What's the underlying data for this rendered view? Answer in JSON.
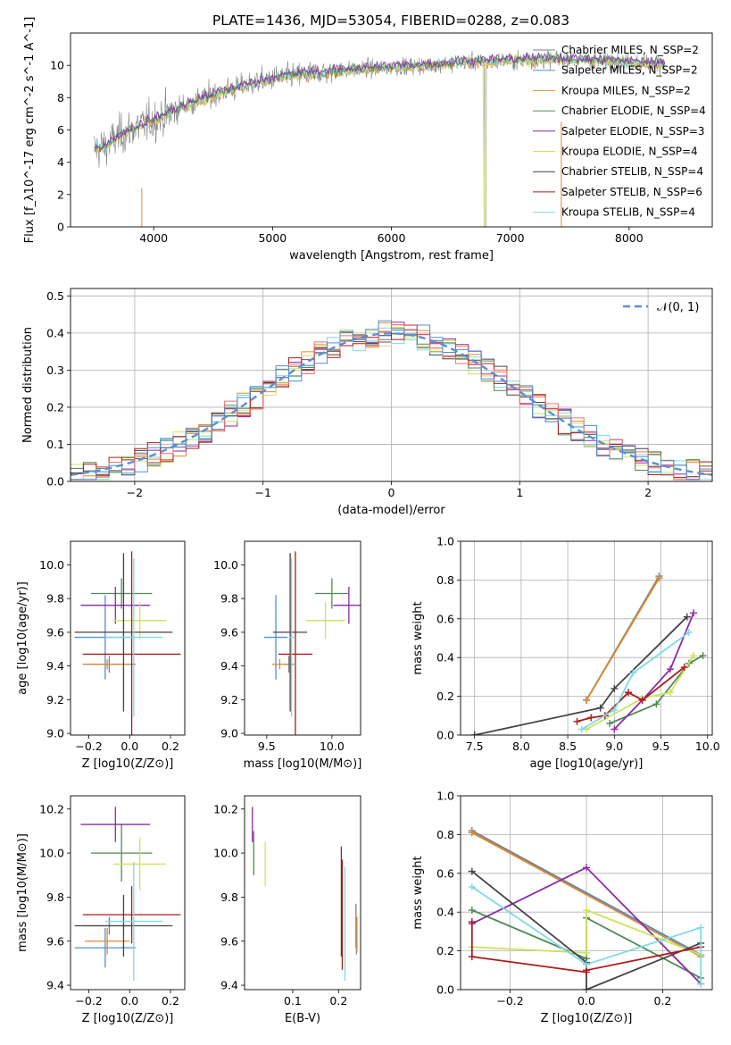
{
  "figure_title": "PLATE=1436, MJD=53054, FIBERID=0288, z=0.083",
  "colors": {
    "Chabrier MILES": "#7f7f7f",
    "Salpeter MILES": "#4e8fd6",
    "Kroupa MILES": "#e08a2e",
    "Chabrier ELODIE": "#4f8a55",
    "Salpeter ELODIE": "#8e2aa7",
    "Kroupa ELODIE": "#cde35c",
    "Chabrier STELIB": "#444444",
    "Salpeter STELIB": "#ad1a1a",
    "Kroupa STELIB": "#7fd9e6",
    "normal": "#5b8fd6"
  },
  "chart_data": [
    {
      "id": "spectrum",
      "type": "line",
      "xlabel": "wavelength [Angstrom, rest frame]",
      "ylabel": "Flux [f_λ10^-17 erg cm^-2 s^-1 A^-1]",
      "xlim": [
        3300,
        8700
      ],
      "ylim": [
        0,
        12
      ],
      "xticks": [
        4000,
        5000,
        6000,
        7000,
        8000
      ],
      "yticks": [
        0,
        2,
        4,
        6,
        8,
        10
      ],
      "grid": false,
      "legend_position": "right",
      "series": [
        {
          "name": "Chabrier MILES, N_SSP=2"
        },
        {
          "name": "Salpeter MILES, N_SSP=2"
        },
        {
          "name": "Kroupa MILES, N_SSP=2"
        },
        {
          "name": "Chabrier ELODIE, N_SSP=4"
        },
        {
          "name": "Salpeter ELODIE, N_SSP=3"
        },
        {
          "name": "Kroupa ELODIE, N_SSP=4"
        },
        {
          "name": "Chabrier STELIB, N_SSP=4"
        },
        {
          "name": "Salpeter STELIB, N_SSP=6"
        },
        {
          "name": "Kroupa STELIB, N_SSP=4"
        }
      ],
      "continuum": {
        "x": [
          3500,
          3600,
          3700,
          3800,
          3900,
          4000,
          4200,
          4500,
          4800,
          5000,
          5300,
          5600,
          6000,
          6300,
          6600,
          7000,
          7400,
          7700,
          8000,
          8300
        ],
        "y": [
          4.8,
          5.0,
          5.6,
          6.0,
          6.3,
          6.6,
          7.3,
          8.2,
          8.8,
          9.2,
          9.5,
          9.7,
          9.9,
          10.0,
          10.2,
          10.3,
          10.4,
          10.3,
          10.2,
          10.1
        ]
      }
    },
    {
      "id": "residuals",
      "type": "area",
      "xlabel": "(data-model)/error",
      "ylabel": "Normed distribution",
      "xlim": [
        -2.5,
        2.5
      ],
      "ylim": [
        0,
        0.52
      ],
      "xticks": [
        -2,
        -1,
        0,
        1,
        2
      ],
      "yticks": [
        0.0,
        0.1,
        0.2,
        0.3,
        0.4,
        0.5
      ],
      "grid": true,
      "legend": "𝒩(0, 1)",
      "normal_sigma": 1
    },
    {
      "id": "age_vs_Z",
      "type": "scatter",
      "xlabel": "Z [log10(Z/Z⊙)]",
      "ylabel": "age  [log10(age/yr)]",
      "xlim": [
        -0.29,
        0.27
      ],
      "ylim": [
        8.99,
        10.14
      ],
      "xticks": [
        -0.2,
        0.0,
        0.2
      ],
      "yticks": [
        9.0,
        9.2,
        9.4,
        9.6,
        9.8,
        10.0
      ],
      "points": [
        {
          "model": "Chabrier MILES",
          "x": -0.1,
          "y": 9.41,
          "xerr": 0.13,
          "yerr": 0.05
        },
        {
          "model": "Salpeter MILES",
          "x": -0.12,
          "y": 9.57,
          "xerr": 0.15,
          "yerr": 0.25
        },
        {
          "model": "Kroupa MILES",
          "x": -0.11,
          "y": 9.41,
          "xerr": 0.11,
          "yerr": 0.03
        },
        {
          "model": "Chabrier ELODIE",
          "x": -0.04,
          "y": 9.83,
          "xerr": 0.15,
          "yerr": 0.09
        },
        {
          "model": "Salpeter ELODIE",
          "x": -0.07,
          "y": 9.76,
          "xerr": 0.17,
          "yerr": 0.11
        },
        {
          "model": "Kroupa ELODIE",
          "x": 0.05,
          "y": 9.67,
          "xerr": 0.13,
          "yerr": 0.11
        },
        {
          "model": "Chabrier STELIB",
          "x": -0.03,
          "y": 9.6,
          "xerr": 0.24,
          "yerr": 0.47
        },
        {
          "model": "Salpeter STELIB",
          "x": 0.01,
          "y": 9.47,
          "xerr": 0.24,
          "yerr": 0.61
        },
        {
          "model": "Kroupa STELIB",
          "x": 0.02,
          "y": 9.57,
          "xerr": 0.14,
          "yerr": 0.47
        }
      ]
    },
    {
      "id": "age_vs_mass",
      "type": "scatter",
      "xlabel": "mass [log10(M/M⊙)]",
      "ylabel": "",
      "xlim": [
        9.33,
        10.22
      ],
      "ylim": [
        8.99,
        10.14
      ],
      "xticks": [
        9.5,
        10.0
      ],
      "yticks": [
        9.0,
        9.2,
        9.4,
        9.6,
        9.8,
        10.0
      ],
      "points": [
        {
          "model": "Chabrier MILES",
          "x": 9.67,
          "y": 9.41,
          "xerr": 0.04,
          "yerr": 0.05
        },
        {
          "model": "Salpeter MILES",
          "x": 9.57,
          "y": 9.57,
          "xerr": 0.09,
          "yerr": 0.25
        },
        {
          "model": "Kroupa MILES",
          "x": 9.6,
          "y": 9.41,
          "xerr": 0.06,
          "yerr": 0.03
        },
        {
          "model": "Chabrier ELODIE",
          "x": 10.0,
          "y": 9.83,
          "xerr": 0.13,
          "yerr": 0.09
        },
        {
          "model": "Salpeter ELODIE",
          "x": 10.13,
          "y": 9.76,
          "xerr": 0.12,
          "yerr": 0.11
        },
        {
          "model": "Kroupa ELODIE",
          "x": 9.95,
          "y": 9.67,
          "xerr": 0.15,
          "yerr": 0.11
        },
        {
          "model": "Chabrier STELIB",
          "x": 9.68,
          "y": 9.6,
          "xerr": 0.13,
          "yerr": 0.47
        },
        {
          "model": "Salpeter STELIB",
          "x": 9.72,
          "y": 9.47,
          "xerr": 0.13,
          "yerr": 0.61
        },
        {
          "model": "Kroupa STELIB",
          "x": 9.69,
          "y": 9.57,
          "xerr": 0.02,
          "yerr": 0.47
        }
      ]
    },
    {
      "id": "mass_weight_vs_age",
      "type": "line",
      "xlabel": "age  [log10(age/yr)]",
      "ylabel": "mass weight",
      "xlim": [
        7.35,
        10.05
      ],
      "ylim": [
        0,
        1
      ],
      "xticks": [
        7.5,
        8.0,
        8.5,
        9.0,
        9.5,
        10.0
      ],
      "yticks": [
        0.0,
        0.2,
        0.4,
        0.6,
        0.8,
        1.0
      ],
      "grid": true,
      "series": [
        {
          "model": "Chabrier MILES",
          "x": [
            8.7,
            9.48
          ],
          "y": [
            0.18,
            0.82
          ]
        },
        {
          "model": "Salpeter MILES",
          "x": [
            8.7,
            9.48
          ],
          "y": [
            0.18,
            0.81
          ]
        },
        {
          "model": "Kroupa MILES",
          "x": [
            8.7,
            9.48
          ],
          "y": [
            0.18,
            0.81
          ]
        },
        {
          "model": "Chabrier ELODIE",
          "x": [
            8.95,
            9.45,
            9.8,
            9.95
          ],
          "y": [
            0.06,
            0.16,
            0.37,
            0.41
          ]
        },
        {
          "model": "Salpeter ELODIE",
          "x": [
            9.0,
            9.3,
            9.6,
            9.85
          ],
          "y": [
            0.03,
            0.18,
            0.34,
            0.63
          ]
        },
        {
          "model": "Kroupa ELODIE",
          "x": [
            8.7,
            9.3,
            9.6,
            9.85
          ],
          "y": [
            0.03,
            0.19,
            0.22,
            0.41
          ]
        },
        {
          "model": "Chabrier STELIB",
          "x": [
            7.5,
            8.85,
            9.0,
            9.78
          ],
          "y": [
            0.0,
            0.14,
            0.24,
            0.61
          ]
        },
        {
          "model": "Salpeter STELIB",
          "x": [
            8.6,
            8.75,
            8.9,
            9.15,
            9.3,
            9.75
          ],
          "y": [
            0.07,
            0.09,
            0.1,
            0.22,
            0.18,
            0.35
          ]
        },
        {
          "model": "Kroupa STELIB",
          "x": [
            8.65,
            9.0,
            9.2,
            9.8
          ],
          "y": [
            0.03,
            0.13,
            0.32,
            0.53
          ]
        }
      ]
    },
    {
      "id": "mass_vs_Z",
      "type": "scatter",
      "xlabel": "Z [log10(Z/Z⊙)]",
      "ylabel": "mass [log10(M/M⊙)]",
      "xlim": [
        -0.29,
        0.27
      ],
      "ylim": [
        9.38,
        10.26
      ],
      "xticks": [
        -0.2,
        0.0,
        0.2
      ],
      "yticks": [
        9.4,
        9.6,
        9.8,
        10.0,
        10.2
      ],
      "points": [
        {
          "model": "Chabrier MILES",
          "x": -0.1,
          "y": 9.67,
          "xerr": 0.13,
          "yerr": 0.04
        },
        {
          "model": "Salpeter MILES",
          "x": -0.12,
          "y": 9.57,
          "xerr": 0.15,
          "yerr": 0.09
        },
        {
          "model": "Kroupa MILES",
          "x": -0.11,
          "y": 9.6,
          "xerr": 0.11,
          "yerr": 0.06
        },
        {
          "model": "Chabrier ELODIE",
          "x": -0.04,
          "y": 10.0,
          "xerr": 0.15,
          "yerr": 0.13
        },
        {
          "model": "Salpeter ELODIE",
          "x": -0.07,
          "y": 10.13,
          "xerr": 0.17,
          "yerr": 0.08
        },
        {
          "model": "Kroupa ELODIE",
          "x": 0.05,
          "y": 9.95,
          "xerr": 0.13,
          "yerr": 0.12
        },
        {
          "model": "Chabrier STELIB",
          "x": -0.03,
          "y": 9.67,
          "xerr": 0.24,
          "yerr": 0.14
        },
        {
          "model": "Salpeter STELIB",
          "x": 0.01,
          "y": 9.72,
          "xerr": 0.24,
          "yerr": 0.13
        },
        {
          "model": "Kroupa STELIB",
          "x": 0.02,
          "y": 9.69,
          "xerr": 0.14,
          "yerr": 0.27
        }
      ]
    },
    {
      "id": "mass_vs_ebv",
      "type": "scatter",
      "xlabel": "E(B-V)",
      "ylabel": "",
      "xlim": [
        -0.005,
        0.248
      ],
      "ylim": [
        9.38,
        10.26
      ],
      "xticks": [
        0.1,
        0.2
      ],
      "yticks": [
        9.4,
        9.6,
        9.8,
        10.0,
        10.2
      ],
      "points": [
        {
          "model": "Salpeter ELODIE",
          "x": 0.012,
          "y": 10.13,
          "yerr": 0.08
        },
        {
          "model": "Chabrier ELODIE",
          "x": 0.015,
          "y": 10.0,
          "yerr": 0.1
        },
        {
          "model": "Kroupa ELODIE",
          "x": 0.04,
          "y": 9.95,
          "yerr": 0.1
        },
        {
          "model": "Chabrier STELIB",
          "x": 0.206,
          "y": 9.78,
          "yerr": 0.25
        },
        {
          "model": "Salpeter STELIB",
          "x": 0.208,
          "y": 9.72,
          "yerr": 0.25
        },
        {
          "model": "Kroupa STELIB",
          "x": 0.214,
          "y": 9.68,
          "yerr": 0.26
        },
        {
          "model": "Chabrier MILES",
          "x": 0.238,
          "y": 9.67,
          "yerr": 0.1
        },
        {
          "model": "Salpeter MILES",
          "x": 0.239,
          "y": 9.6,
          "yerr": 0.06
        },
        {
          "model": "Kroupa MILES",
          "x": 0.24,
          "y": 9.63,
          "yerr": 0.08
        }
      ]
    },
    {
      "id": "mass_weight_vs_Z",
      "type": "line",
      "xlabel": "Z [log10(Z/Z⊙)]",
      "ylabel": "mass weight",
      "xlim": [
        -0.33,
        0.33
      ],
      "ylim": [
        0,
        1
      ],
      "xticks": [
        -0.2,
        0.0,
        0.2
      ],
      "yticks": [
        0.0,
        0.2,
        0.4,
        0.6,
        0.8,
        1.0
      ],
      "grid": true,
      "series": [
        {
          "model": "Chabrier MILES",
          "x": [
            -0.3,
            0.3
          ],
          "y": [
            0.82,
            0.18
          ]
        },
        {
          "model": "Salpeter MILES",
          "x": [
            -0.3,
            0.3
          ],
          "y": [
            0.81,
            0.18
          ]
        },
        {
          "model": "Kroupa MILES",
          "x": [
            -0.3,
            0.3
          ],
          "y": [
            0.81,
            0.17
          ]
        },
        {
          "model": "Chabrier ELODIE",
          "x": [
            -0.3,
            0.0,
            0.0,
            0.3
          ],
          "y": [
            0.41,
            0.16,
            0.37,
            0.06
          ]
        },
        {
          "model": "Salpeter ELODIE",
          "x": [
            -0.3,
            0.0,
            0.3
          ],
          "y": [
            0.34,
            0.63,
            0.03
          ]
        },
        {
          "model": "Kroupa ELODIE",
          "x": [
            -0.3,
            0.0,
            0.0,
            0.3
          ],
          "y": [
            0.22,
            0.19,
            0.41,
            0.18
          ]
        },
        {
          "model": "Chabrier STELIB",
          "x": [
            -0.3,
            0.0,
            0.0,
            0.3
          ],
          "y": [
            0.61,
            0.14,
            0.0,
            0.24
          ]
        },
        {
          "model": "Salpeter STELIB",
          "x": [
            -0.3,
            -0.3,
            0.0,
            0.0,
            0.3
          ],
          "y": [
            0.35,
            0.17,
            0.09,
            0.1,
            0.22
          ]
        },
        {
          "model": "Kroupa STELIB",
          "x": [
            -0.3,
            0.0,
            0.3,
            0.3
          ],
          "y": [
            0.53,
            0.13,
            0.32,
            0.03
          ]
        }
      ]
    }
  ]
}
